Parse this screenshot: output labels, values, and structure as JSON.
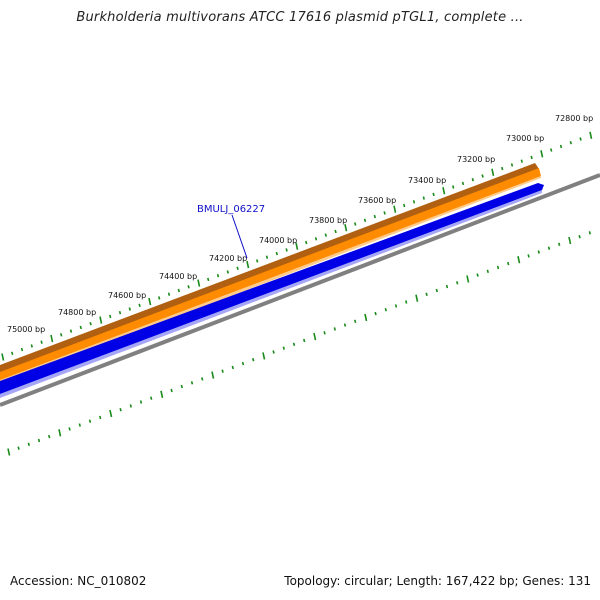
{
  "title": "Burkholderia multivorans ATCC 17616 plasmid pTGL1, complete ...",
  "gene_label": "BMULJ_06227",
  "ticks": [
    {
      "label": "72800 bp"
    },
    {
      "label": "73000 bp"
    },
    {
      "label": "73200 bp"
    },
    {
      "label": "73400 bp"
    },
    {
      "label": "73600 bp"
    },
    {
      "label": "73800 bp"
    },
    {
      "label": "74000 bp"
    },
    {
      "label": "74200 bp"
    },
    {
      "label": "74400 bp"
    },
    {
      "label": "74600 bp"
    },
    {
      "label": "74800 bp"
    },
    {
      "label": "75000 bp"
    }
  ],
  "colors": {
    "forward_feature": "#ff8c00",
    "forward_feature_edge": "#b06010",
    "reverse_feature": "#0000e6",
    "backbone": "#808080",
    "ticks": "#1a8a1a",
    "gene_label": "#1010c8"
  },
  "footer": {
    "accession": "Accession: NC_010802",
    "summary": "Topology: circular; Length: 167,422 bp; Genes: 131"
  }
}
